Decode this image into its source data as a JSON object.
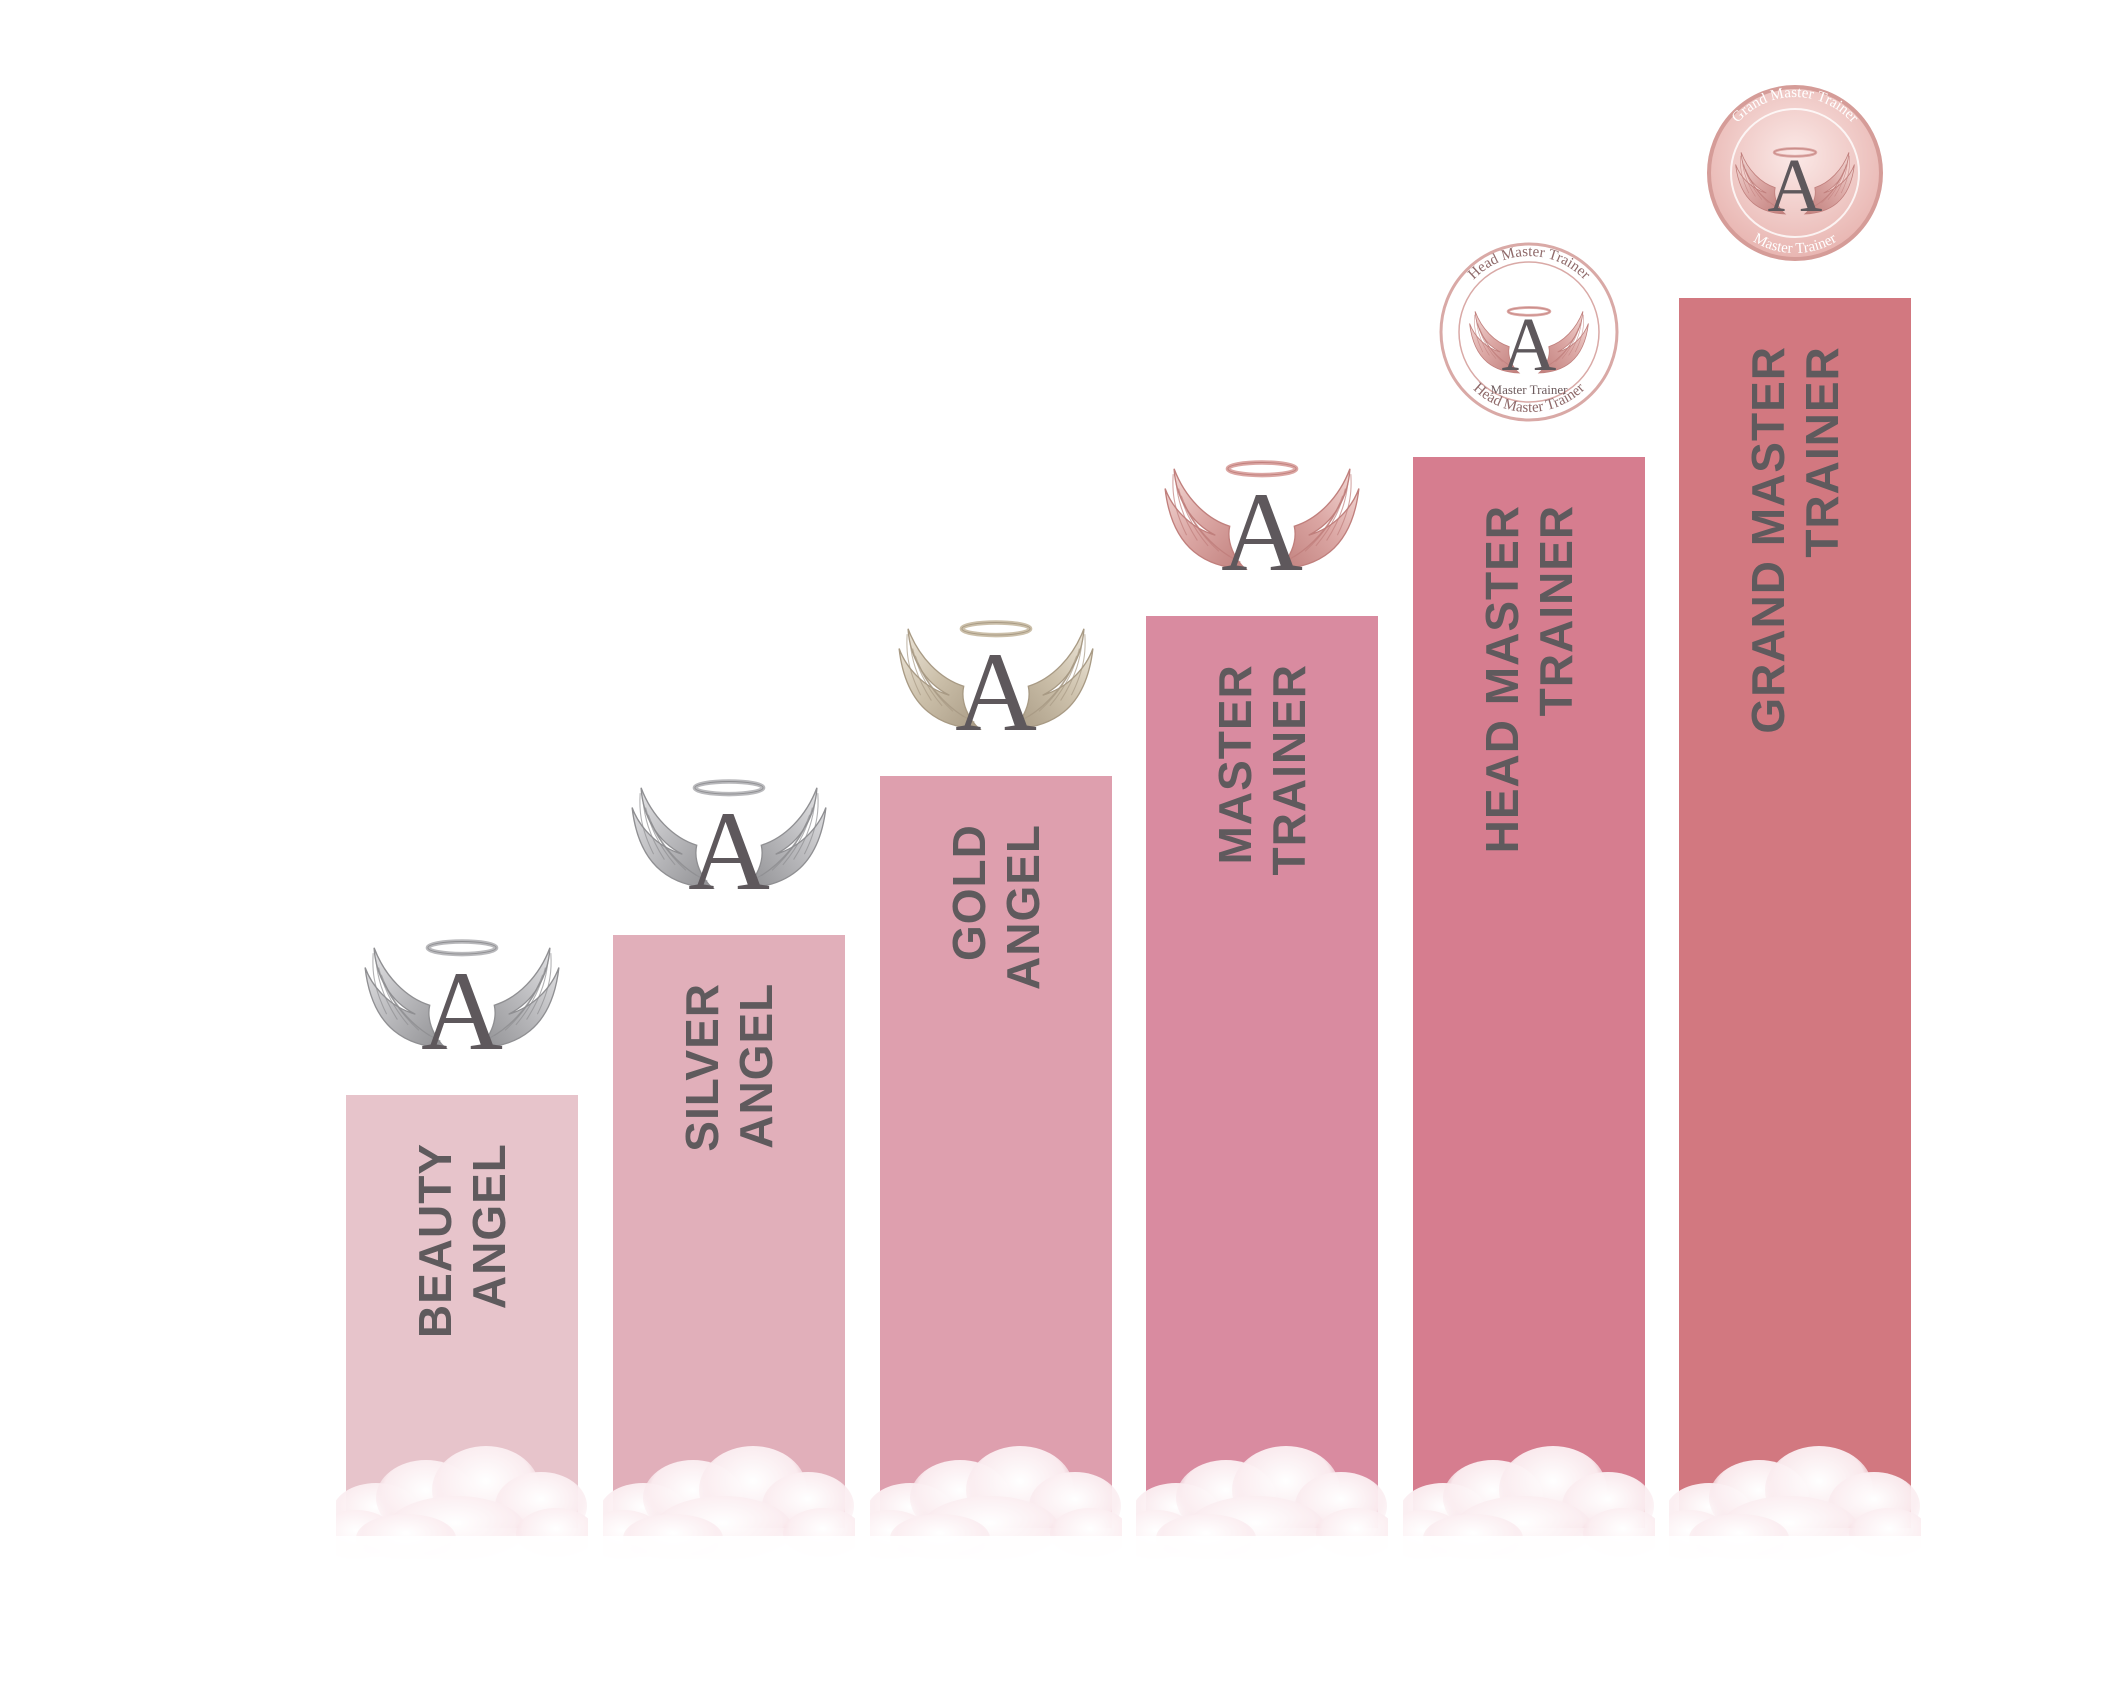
{
  "steps": [
    {
      "id": "beauty-angel",
      "label_lines": [
        "BEAUTY",
        "ANGEL"
      ],
      "color": "#e7c4cb",
      "emblem_style": "wings",
      "emblem_tone": "silver",
      "emblem_letter": "A"
    },
    {
      "id": "silver-angel",
      "label_lines": [
        "SILVER",
        "ANGEL"
      ],
      "color": "#e1afba",
      "emblem_style": "wings",
      "emblem_tone": "silver",
      "emblem_letter": "A"
    },
    {
      "id": "gold-angel",
      "label_lines": [
        "GOLD",
        "ANGEL"
      ],
      "color": "#de9fae",
      "emblem_style": "wings",
      "emblem_tone": "gold",
      "emblem_letter": "A"
    },
    {
      "id": "master-trainer",
      "label_lines": [
        "MASTER",
        "TRAINER"
      ],
      "color": "#d98ba0",
      "emblem_style": "wings",
      "emblem_tone": "rose",
      "emblem_letter": "A"
    },
    {
      "id": "head-master-trainer",
      "label_lines": [
        "HEAD MASTER",
        "TRAINER"
      ],
      "color": "#d67d8f",
      "emblem_style": "seal",
      "emblem_tone": "rose",
      "emblem_letter": "A",
      "seal_top_text": "Head Master Trainer",
      "seal_inner_text": "Master Trainer",
      "seal_bottom_text": "Head Master Trainer"
    },
    {
      "id": "grand-master-trainer",
      "label_lines": [
        "GRAND MASTER",
        "TRAINER"
      ],
      "color": "#d27880",
      "emblem_style": "seal-filled",
      "emblem_tone": "rose",
      "emblem_letter": "A",
      "seal_top_text": "Grand Master Trainer",
      "seal_bottom_text": "Master Trainer"
    }
  ],
  "colors": {
    "label_text": "#5f5a5d",
    "letter": "#5e585c",
    "silver": "#a9a9ab",
    "gold": "#c7b9a2",
    "rose": "#d59c98"
  }
}
